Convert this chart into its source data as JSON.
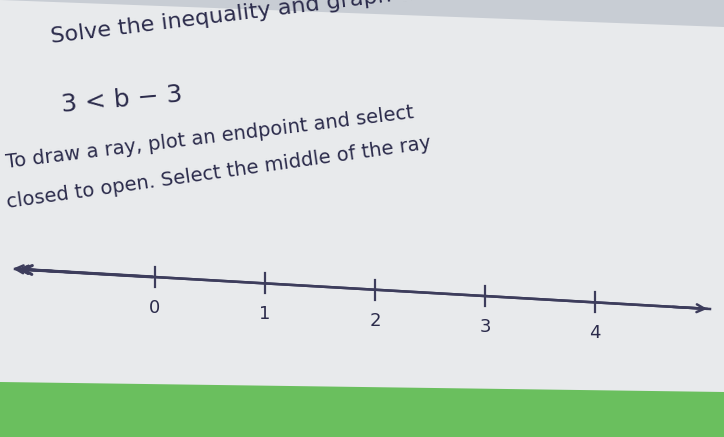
{
  "background_color": "#c8cdd4",
  "paper_color": "#dde3e8",
  "title_text": "Solve the inequality and graph the solutio",
  "inequality_text": "3 < b − 3",
  "instruction_line1": "To draw a ray, plot an endpoint and select",
  "instruction_line2": "closed to open. Select the middle of the ray",
  "number_line_ticks": [
    0,
    1,
    2,
    3,
    4
  ],
  "axis_color": "#3d3d5c",
  "text_color": "#2b2b4b",
  "title_fontsize": 16,
  "inequality_fontsize": 18,
  "instruction_fontsize": 14,
  "tick_label_fontsize": 13,
  "green_bar_color": "#6abf5e",
  "rotation_title": 8,
  "rotation_instruction": 7,
  "rotation_numberline": 5
}
